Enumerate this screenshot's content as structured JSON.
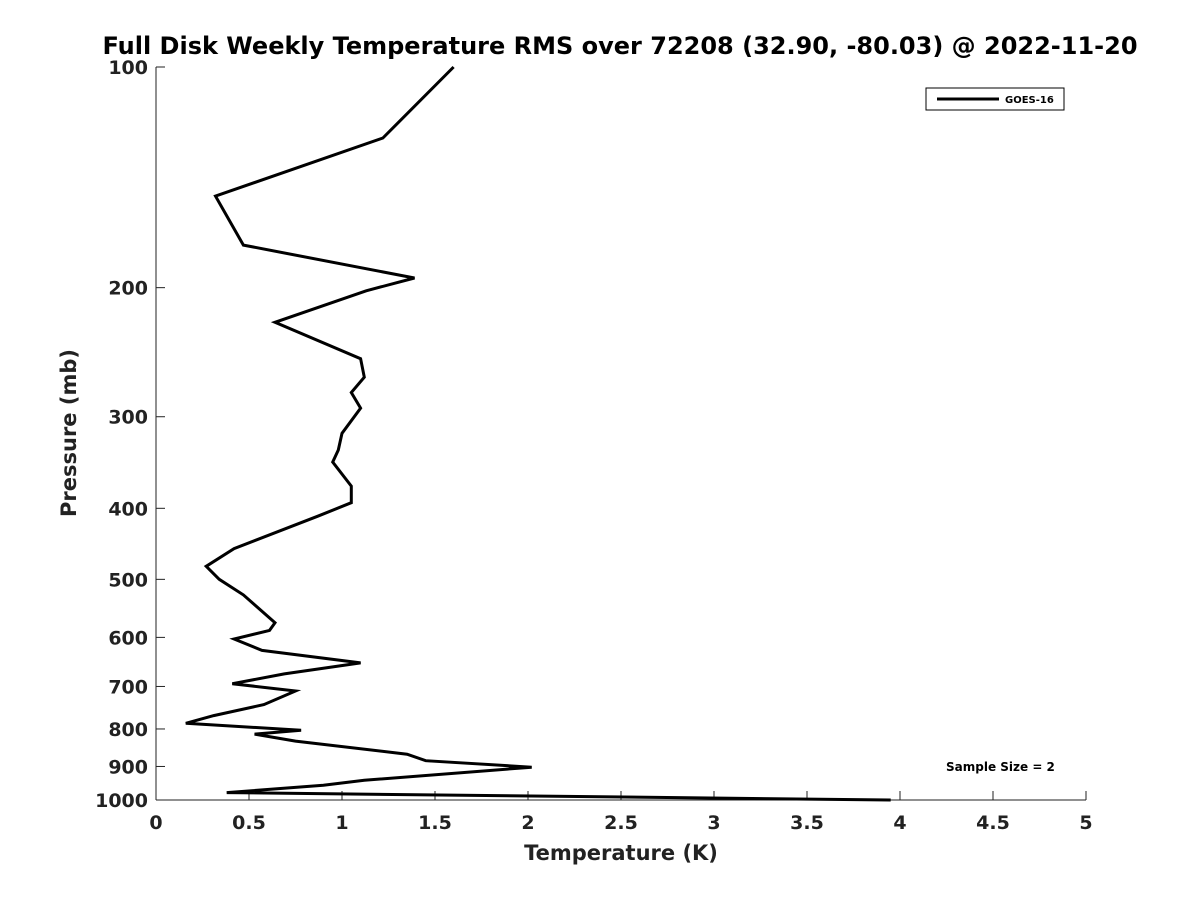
{
  "chart_data": {
    "type": "line",
    "title": "Full Disk Weekly Temperature RMS over 72208 (32.90, -80.03) @ 2022-11-20",
    "xlabel": "Temperature (K)",
    "ylabel": "Pressure (mb)",
    "xlim": [
      0,
      5
    ],
    "ylim": [
      1000,
      100
    ],
    "y_scale": "log",
    "y_reversed": true,
    "x_ticks": [
      0,
      0.5,
      1,
      1.5,
      2,
      2.5,
      3,
      3.5,
      4,
      4.5,
      5
    ],
    "x_tick_labels": [
      "0",
      "0.5",
      "1",
      "1.5",
      "2",
      "2.5",
      "3",
      "3.5",
      "4",
      "4.5",
      "5"
    ],
    "y_ticks": [
      100,
      200,
      300,
      400,
      500,
      600,
      700,
      800,
      900,
      1000
    ],
    "y_tick_labels": [
      "100",
      "200",
      "300",
      "400",
      "500",
      "600",
      "700",
      "800",
      "900",
      "1000"
    ],
    "grid": false,
    "legend_position": "top-right",
    "annotation": "Sample Size = 2",
    "series": [
      {
        "name": "GOES-16",
        "color": "#000000",
        "points": [
          [
            1.6,
            100
          ],
          [
            1.22,
            125
          ],
          [
            0.32,
            150
          ],
          [
            0.47,
            175
          ],
          [
            1.39,
            194
          ],
          [
            1.13,
            202
          ],
          [
            0.64,
            223
          ],
          [
            1.1,
            250
          ],
          [
            1.12,
            265
          ],
          [
            1.05,
            278
          ],
          [
            1.1,
            292
          ],
          [
            1.0,
            316
          ],
          [
            0.98,
            333
          ],
          [
            0.95,
            346
          ],
          [
            1.05,
            373
          ],
          [
            1.05,
            393
          ],
          [
            0.87,
            410
          ],
          [
            0.42,
            454
          ],
          [
            0.27,
            480
          ],
          [
            0.34,
            500
          ],
          [
            0.47,
            525
          ],
          [
            0.64,
            573
          ],
          [
            0.61,
            587
          ],
          [
            0.42,
            603
          ],
          [
            0.57,
            625
          ],
          [
            1.1,
            650
          ],
          [
            0.69,
            673
          ],
          [
            0.41,
            694
          ],
          [
            0.75,
            710
          ],
          [
            0.58,
            741
          ],
          [
            0.31,
            767
          ],
          [
            0.16,
            786
          ],
          [
            0.78,
            803
          ],
          [
            0.53,
            813
          ],
          [
            0.75,
            831
          ],
          [
            1.35,
            866
          ],
          [
            1.45,
            884
          ],
          [
            2.02,
            902
          ],
          [
            1.12,
            940
          ],
          [
            0.9,
            955
          ],
          [
            0.38,
            977
          ],
          [
            3.95,
            1000
          ]
        ]
      }
    ]
  }
}
